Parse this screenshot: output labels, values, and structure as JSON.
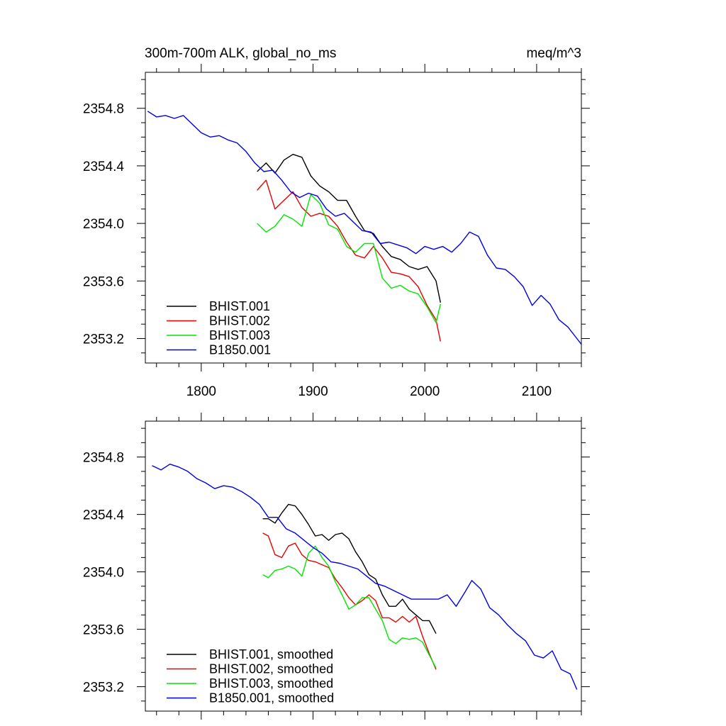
{
  "title_left": "300m-700m ALK, global_no_ms",
  "title_right": "meq/m^3",
  "colors": {
    "BHIST.001": "#000000",
    "BHIST.002": "#e60000",
    "BHIST.003": "#00e600",
    "B1850.001": "#0000e6"
  },
  "chart_data": [
    {
      "type": "line",
      "panel": "raw",
      "xlim": [
        1750,
        2140
      ],
      "ylim": [
        2353.03,
        2355.05
      ],
      "xticks": [
        1800,
        1900,
        2000,
        2100
      ],
      "xtick_labels": [
        "1800",
        "1900",
        "2000",
        "2100"
      ],
      "yticks": [
        2353.2,
        2353.6,
        2354.0,
        2354.4,
        2354.8
      ],
      "ytick_labels": [
        "2353.2",
        "2353.6",
        "2354.0",
        "2354.4",
        "2354.8"
      ],
      "legend": "bottom-left",
      "series": [
        {
          "name": "BHIST.001",
          "label": "BHIST.001",
          "x": [
            1850,
            1858,
            1866,
            1874,
            1882,
            1890,
            1898,
            1906,
            1914,
            1922,
            1930,
            1938,
            1946,
            1954,
            1962,
            1970,
            1978,
            1986,
            1994,
            2002,
            2010,
            2014
          ],
          "y": [
            2354.36,
            2354.42,
            2354.35,
            2354.44,
            2354.48,
            2354.46,
            2354.33,
            2354.26,
            2354.22,
            2354.16,
            2354.16,
            2354.05,
            2353.95,
            2353.93,
            2353.84,
            2353.77,
            2353.75,
            2353.7,
            2353.68,
            2353.7,
            2353.6,
            2353.45
          ]
        },
        {
          "name": "BHIST.002",
          "label": "BHIST.002",
          "x": [
            1850,
            1858,
            1866,
            1874,
            1882,
            1890,
            1898,
            1906,
            1914,
            1922,
            1930,
            1938,
            1946,
            1954,
            1962,
            1970,
            1978,
            1986,
            1994,
            2002,
            2010,
            2014
          ],
          "y": [
            2354.23,
            2354.3,
            2354.1,
            2354.16,
            2354.22,
            2354.11,
            2354.05,
            2354.07,
            2354.05,
            2353.98,
            2353.87,
            2353.78,
            2353.76,
            2353.84,
            2353.76,
            2353.66,
            2353.65,
            2353.63,
            2353.56,
            2353.43,
            2353.33,
            2353.18
          ]
        },
        {
          "name": "BHIST.003",
          "label": "BHIST.003",
          "x": [
            1850,
            1858,
            1866,
            1874,
            1882,
            1890,
            1898,
            1906,
            1914,
            1922,
            1930,
            1938,
            1946,
            1954,
            1962,
            1970,
            1978,
            1986,
            1994,
            2002,
            2010,
            2014
          ],
          "y": [
            2354.0,
            2353.94,
            2353.98,
            2354.06,
            2354.03,
            2353.98,
            2354.2,
            2354.14,
            2353.99,
            2353.96,
            2353.84,
            2353.8,
            2353.86,
            2353.86,
            2353.62,
            2353.55,
            2353.57,
            2353.53,
            2353.51,
            2353.42,
            2353.31,
            2353.44
          ]
        },
        {
          "name": "B1850.001",
          "label": "B1850.001",
          "x": [
            1752,
            1760,
            1768,
            1776,
            1784,
            1792,
            1800,
            1808,
            1816,
            1824,
            1832,
            1840,
            1848,
            1856,
            1864,
            1872,
            1880,
            1888,
            1896,
            1904,
            1912,
            1920,
            1928,
            1936,
            1944,
            1952,
            1960,
            1968,
            1976,
            1984,
            1992,
            2000,
            2008,
            2016,
            2024,
            2032,
            2040,
            2048,
            2056,
            2064,
            2072,
            2080,
            2088,
            2096,
            2104,
            2112,
            2120,
            2128,
            2136,
            2140
          ],
          "y": [
            2354.78,
            2354.74,
            2354.75,
            2354.73,
            2354.75,
            2354.69,
            2354.63,
            2354.6,
            2354.61,
            2354.58,
            2354.56,
            2354.5,
            2354.42,
            2354.36,
            2354.37,
            2354.3,
            2354.22,
            2354.18,
            2354.21,
            2354.19,
            2354.1,
            2354.05,
            2354.07,
            2354.01,
            2353.95,
            2353.94,
            2353.86,
            2353.87,
            2353.85,
            2353.83,
            2353.79,
            2353.84,
            2353.82,
            2353.84,
            2353.8,
            2353.86,
            2353.94,
            2353.91,
            2353.78,
            2353.69,
            2353.68,
            2353.63,
            2353.56,
            2353.43,
            2353.5,
            2353.44,
            2353.33,
            2353.28,
            2353.2,
            2353.16
          ]
        }
      ]
    },
    {
      "type": "line",
      "panel": "smoothed",
      "xlim": [
        1750,
        2140
      ],
      "ylim": [
        2353.03,
        2355.05
      ],
      "xticks": [
        1800,
        1900,
        2000,
        2100
      ],
      "yticks": [
        2353.2,
        2353.6,
        2354.0,
        2354.4,
        2354.8
      ],
      "ytick_labels": [
        "2353.2",
        "2353.6",
        "2354.0",
        "2354.4",
        "2354.8"
      ],
      "legend": "bottom-left",
      "series": [
        {
          "name": "BHIST.001",
          "label": "BHIST.001, smoothed",
          "x": [
            1855,
            1860,
            1866,
            1872,
            1878,
            1884,
            1890,
            1896,
            1902,
            1908,
            1914,
            1920,
            1926,
            1932,
            1938,
            1944,
            1950,
            1956,
            1962,
            1968,
            1974,
            1980,
            1986,
            1992,
            1998,
            2004,
            2010
          ],
          "y": [
            2354.37,
            2354.37,
            2354.34,
            2354.41,
            2354.47,
            2354.46,
            2354.4,
            2354.33,
            2354.25,
            2354.26,
            2354.22,
            2354.26,
            2354.27,
            2354.23,
            2354.14,
            2354.07,
            2353.98,
            2353.95,
            2353.84,
            2353.76,
            2353.76,
            2353.81,
            2353.74,
            2353.7,
            2353.66,
            2353.66,
            2353.57
          ]
        },
        {
          "name": "BHIST.002",
          "label": "BHIST.002, smoothed",
          "x": [
            1855,
            1860,
            1866,
            1872,
            1878,
            1884,
            1890,
            1896,
            1902,
            1908,
            1914,
            1920,
            1926,
            1932,
            1938,
            1944,
            1950,
            1956,
            1962,
            1968,
            1974,
            1980,
            1986,
            1992,
            1998,
            2004,
            2010
          ],
          "y": [
            2354.27,
            2354.25,
            2354.12,
            2354.1,
            2354.18,
            2354.2,
            2354.12,
            2354.08,
            2354.07,
            2354.05,
            2354.03,
            2353.95,
            2353.89,
            2353.82,
            2353.77,
            2353.8,
            2353.84,
            2353.8,
            2353.68,
            2353.68,
            2353.65,
            2353.69,
            2353.65,
            2353.69,
            2353.55,
            2353.43,
            2353.32
          ]
        },
        {
          "name": "BHIST.003",
          "label": "BHIST.003, smoothed",
          "x": [
            1855,
            1860,
            1866,
            1872,
            1878,
            1884,
            1890,
            1896,
            1902,
            1908,
            1914,
            1920,
            1926,
            1932,
            1938,
            1944,
            1950,
            1956,
            1962,
            1968,
            1974,
            1980,
            1986,
            1992,
            1998,
            2004,
            2010
          ],
          "y": [
            2353.98,
            2353.96,
            2354.01,
            2354.02,
            2354.04,
            2354.02,
            2353.97,
            2354.13,
            2354.18,
            2354.1,
            2354.04,
            2353.93,
            2353.84,
            2353.74,
            2353.77,
            2353.82,
            2353.82,
            2353.74,
            2353.66,
            2353.53,
            2353.5,
            2353.54,
            2353.53,
            2353.54,
            2353.51,
            2353.42,
            2353.33
          ]
        },
        {
          "name": "B1850.001",
          "label": "B1850.001, smoothed",
          "x": [
            1756,
            1764,
            1772,
            1780,
            1788,
            1796,
            1804,
            1812,
            1820,
            1828,
            1836,
            1844,
            1852,
            1860,
            1868,
            1876,
            1884,
            1892,
            1900,
            1908,
            1916,
            1924,
            1932,
            1940,
            1948,
            1956,
            1964,
            1972,
            1980,
            1988,
            1996,
            2004,
            2012,
            2020,
            2028,
            2036,
            2042,
            2050,
            2058,
            2066,
            2074,
            2082,
            2090,
            2098,
            2106,
            2114,
            2122,
            2130,
            2136
          ],
          "y": [
            2354.74,
            2354.71,
            2354.75,
            2354.73,
            2354.7,
            2354.65,
            2354.62,
            2354.58,
            2354.6,
            2354.59,
            2354.56,
            2354.52,
            2354.47,
            2354.38,
            2354.38,
            2354.3,
            2354.27,
            2354.22,
            2354.17,
            2354.13,
            2354.07,
            2354.06,
            2354.04,
            2354.02,
            2353.97,
            2353.92,
            2353.9,
            2353.87,
            2353.84,
            2353.81,
            2353.81,
            2353.81,
            2353.81,
            2353.84,
            2353.76,
            2353.86,
            2353.94,
            2353.88,
            2353.75,
            2353.7,
            2353.63,
            2353.57,
            2353.52,
            2353.42,
            2353.4,
            2353.45,
            2353.32,
            2353.29,
            2353.18
          ]
        }
      ]
    }
  ]
}
